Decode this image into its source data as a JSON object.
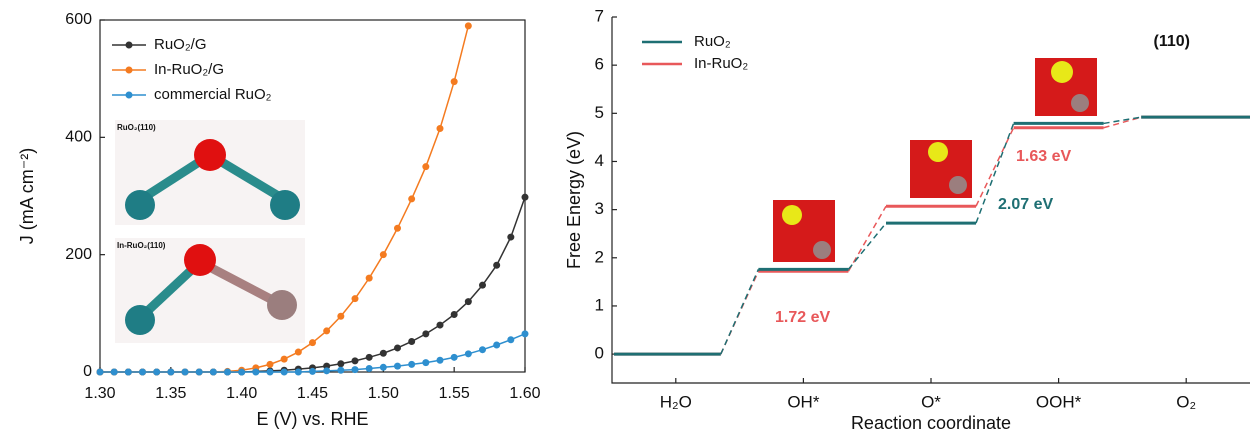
{
  "chart_data": [
    {
      "type": "line",
      "xlabel": "E (V) vs. RHE",
      "ylabel": "J (mA cm⁻²)",
      "x": [
        1.3,
        1.31,
        1.32,
        1.33,
        1.34,
        1.35,
        1.36,
        1.37,
        1.38,
        1.39,
        1.4,
        1.41,
        1.42,
        1.43,
        1.44,
        1.45,
        1.46,
        1.47,
        1.48,
        1.49,
        1.5,
        1.51,
        1.52,
        1.53,
        1.54,
        1.55,
        1.56,
        1.57,
        1.58,
        1.59,
        1.6
      ],
      "series": [
        {
          "name": "RuO₂/G",
          "color": "#333333",
          "values": [
            0,
            0,
            0,
            0,
            0,
            0,
            0,
            0,
            0,
            0,
            0,
            1,
            2,
            3,
            5,
            7,
            10,
            14,
            19,
            25,
            32,
            41,
            52,
            65,
            80,
            98,
            120,
            148,
            182,
            230,
            298
          ]
        },
        {
          "name": "In-RuO₂/G",
          "color": "#f47b20",
          "values": [
            0,
            0,
            0,
            0,
            0,
            0,
            0,
            0,
            0,
            1,
            3,
            7,
            13,
            22,
            34,
            50,
            70,
            95,
            125,
            160,
            200,
            245,
            295,
            350,
            415,
            495,
            590,
            null,
            null,
            null,
            null
          ]
        },
        {
          "name": "commercial RuO₂",
          "color": "#2e8fcf",
          "values": [
            0,
            0,
            0,
            0,
            0,
            0,
            0,
            0,
            0,
            0,
            0,
            0,
            0,
            0,
            0,
            1,
            2,
            3,
            4,
            6,
            8,
            10,
            13,
            16,
            20,
            25,
            31,
            38,
            46,
            55,
            65
          ]
        }
      ],
      "xlim": [
        1.3,
        1.6
      ],
      "xticks": [
        {
          "value": 1.3,
          "label": "1.30"
        },
        {
          "value": 1.35,
          "label": "1.35"
        },
        {
          "value": 1.4,
          "label": "1.40"
        },
        {
          "value": 1.45,
          "label": "1.45"
        },
        {
          "value": 1.5,
          "label": "1.50"
        },
        {
          "value": 1.55,
          "label": "1.55"
        },
        {
          "value": 1.6,
          "label": "1.60"
        }
      ],
      "ylim": [
        0,
        600
      ],
      "yticks": [
        0,
        200,
        400,
        600
      ],
      "legend": "upper left",
      "insets": [
        "RuO₂(110)",
        "In-RuO₂(110)"
      ]
    },
    {
      "type": "step",
      "xlabel": "Reaction coordinate",
      "ylabel": "Free Energy (eV)",
      "categories": [
        "H₂O",
        "OH*",
        "O*",
        "OOH*",
        "O₂"
      ],
      "series": [
        {
          "name": "RuO₂",
          "color": "#1e6f73",
          "values": [
            0,
            1.76,
            2.72,
            4.79,
            4.92
          ]
        },
        {
          "name": "In-RuO₂",
          "color": "#e8585a",
          "values": [
            0,
            1.72,
            3.07,
            4.7,
            4.92
          ]
        }
      ],
      "ylim": [
        -0.6,
        7
      ],
      "yticks": [
        0,
        1,
        2,
        3,
        4,
        5,
        6,
        7
      ],
      "legend": "upper left",
      "annotations": [
        {
          "text": "1.72 eV",
          "color": "#e8585a"
        },
        {
          "text": "2.07 eV",
          "color": "#1e6f73"
        },
        {
          "text": "1.63 eV",
          "color": "#e8585a"
        },
        {
          "text": "(110)",
          "color": "#111111"
        }
      ]
    }
  ]
}
